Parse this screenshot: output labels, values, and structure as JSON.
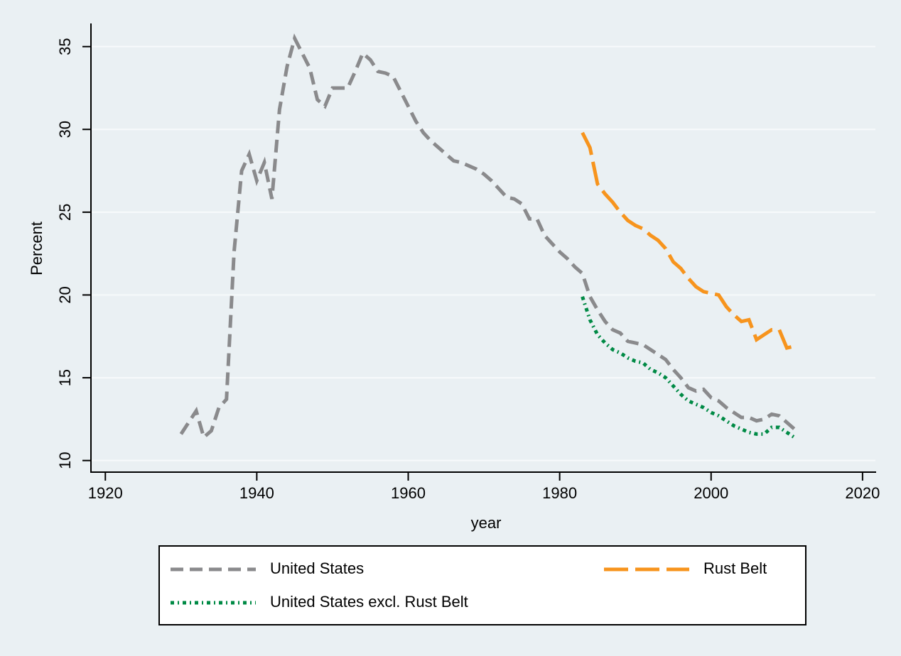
{
  "chart_data": {
    "type": "line",
    "x_label": "year",
    "y_label": "Percent",
    "xlim": [
      1918.1,
      2021.7
    ],
    "ylim": [
      9.3,
      36.4
    ],
    "xticks": [
      1920,
      1940,
      1960,
      1980,
      2000,
      2020
    ],
    "yticks": [
      10,
      15,
      20,
      25,
      30,
      35
    ],
    "grid": true,
    "legend": "bottom",
    "series": [
      {
        "name": "United States",
        "color": "#8a8a8c",
        "style": "dash",
        "x": [
          1930,
          1931,
          1932,
          1933,
          1934,
          1935,
          1936,
          1937,
          1938,
          1939,
          1940,
          1941,
          1942,
          1943,
          1944,
          1945,
          1946,
          1947,
          1948,
          1949,
          1950,
          1951,
          1952,
          1953,
          1954,
          1955,
          1956,
          1957,
          1958,
          1959,
          1960,
          1961,
          1962,
          1963,
          1964,
          1965,
          1966,
          1967,
          1968,
          1969,
          1970,
          1971,
          1972,
          1973,
          1974,
          1975,
          1976,
          1977,
          1978,
          1979,
          1980,
          1981,
          1982,
          1983,
          1984,
          1985,
          1986,
          1987,
          1988,
          1989,
          1990,
          1991,
          1992,
          1993,
          1994,
          1995,
          1996,
          1997,
          1998,
          1999,
          2000,
          2001,
          2002,
          2003,
          2004,
          2005,
          2006,
          2007,
          2008,
          2009,
          2010,
          2011
        ],
        "values": [
          11.6,
          12.3,
          13.0,
          11.4,
          11.8,
          13.2,
          13.7,
          22.6,
          27.5,
          28.5,
          26.9,
          28.0,
          25.8,
          31.2,
          33.8,
          35.5,
          34.6,
          33.7,
          31.8,
          31.4,
          32.5,
          32.5,
          32.5,
          33.5,
          34.6,
          34.2,
          33.5,
          33.4,
          33.2,
          32.3,
          31.4,
          30.5,
          29.8,
          29.3,
          28.9,
          28.5,
          28.1,
          28.0,
          27.8,
          27.6,
          27.3,
          26.9,
          26.4,
          25.9,
          25.8,
          25.5,
          24.6,
          24.6,
          23.6,
          23.1,
          22.6,
          22.2,
          21.7,
          21.3,
          19.9,
          19.1,
          18.4,
          17.9,
          17.7,
          17.2,
          17.1,
          17.0,
          16.7,
          16.4,
          16.1,
          15.5,
          15.0,
          14.4,
          14.2,
          14.3,
          13.8,
          13.6,
          13.2,
          12.9,
          12.6,
          12.6,
          12.4,
          12.5,
          12.8,
          12.7,
          12.3,
          11.9
        ]
      },
      {
        "name": "Rust Belt",
        "color": "#f7941d",
        "style": "longdash",
        "x": [
          1983,
          1984,
          1985,
          1986,
          1987,
          1988,
          1989,
          1990,
          1991,
          1992,
          1993,
          1994,
          1995,
          1996,
          1997,
          1998,
          1999,
          2000,
          2001,
          2002,
          2003,
          2004,
          2005,
          2006,
          2007,
          2008,
          2009,
          2010,
          2011
        ],
        "values": [
          29.8,
          28.9,
          26.7,
          26.1,
          25.6,
          25.0,
          24.5,
          24.2,
          24.0,
          23.6,
          23.3,
          22.8,
          22.0,
          21.6,
          21.0,
          20.5,
          20.2,
          20.1,
          20.0,
          19.3,
          18.8,
          18.4,
          18.5,
          17.3,
          17.6,
          17.9,
          17.9,
          16.8,
          16.9
        ]
      },
      {
        "name": "United States excl. Rust Belt",
        "color": "#008a45",
        "style": "dot",
        "x": [
          1983,
          1984,
          1985,
          1986,
          1987,
          1988,
          1989,
          1990,
          1991,
          1992,
          1993,
          1994,
          1995,
          1996,
          1997,
          1998,
          1999,
          2000,
          2001,
          2002,
          2003,
          2004,
          2005,
          2006,
          2007,
          2008,
          2009,
          2010,
          2011
        ],
        "values": [
          19.9,
          18.5,
          17.6,
          17.1,
          16.7,
          16.5,
          16.2,
          16.0,
          15.9,
          15.5,
          15.3,
          15.0,
          14.5,
          14.0,
          13.6,
          13.4,
          13.2,
          12.9,
          12.7,
          12.4,
          12.1,
          11.9,
          11.7,
          11.6,
          11.6,
          12.0,
          12.0,
          11.7,
          11.4
        ]
      }
    ]
  }
}
